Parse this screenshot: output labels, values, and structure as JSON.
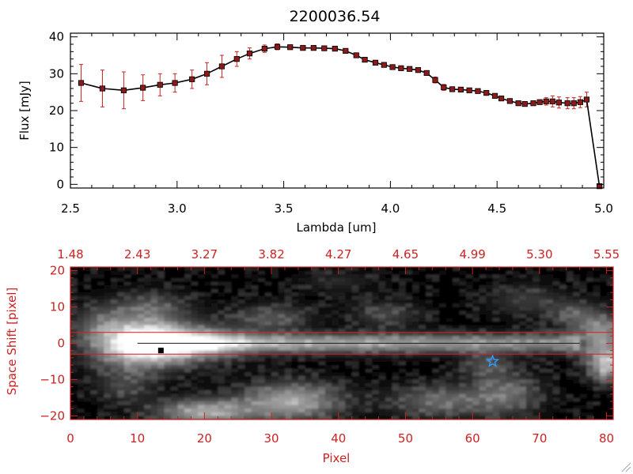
{
  "chart_data": [
    {
      "type": "line",
      "title": "2200036.54",
      "xlabel": "Lambda [um]",
      "ylabel": "Flux [mJy]",
      "xlim": [
        2.5,
        5.0
      ],
      "ylim": [
        -1,
        41
      ],
      "x_ticks": [
        {
          "v": 2.5,
          "label": "2.5"
        },
        {
          "v": 3.0,
          "label": "3.0"
        },
        {
          "v": 3.5,
          "label": "3.5"
        },
        {
          "v": 4.0,
          "label": "4.0"
        },
        {
          "v": 4.5,
          "label": "4.5"
        },
        {
          "v": 5.0,
          "label": "5.0"
        }
      ],
      "y_ticks": [
        {
          "v": 0,
          "label": "0"
        },
        {
          "v": 10,
          "label": "10"
        },
        {
          "v": 20,
          "label": "20"
        },
        {
          "v": 30,
          "label": "30"
        },
        {
          "v": 40,
          "label": "40"
        }
      ],
      "line_color": "#000000",
      "marker_color": "#8b1a1a",
      "error_color": "#cc2222",
      "x": [
        2.55,
        2.65,
        2.75,
        2.84,
        2.92,
        2.99,
        3.07,
        3.14,
        3.21,
        3.28,
        3.34,
        3.41,
        3.47,
        3.53,
        3.59,
        3.64,
        3.69,
        3.74,
        3.79,
        3.84,
        3.88,
        3.93,
        3.97,
        4.01,
        4.05,
        4.09,
        4.13,
        4.17,
        4.21,
        4.25,
        4.29,
        4.33,
        4.37,
        4.41,
        4.45,
        4.49,
        4.52,
        4.56,
        4.6,
        4.63,
        4.67,
        4.7,
        4.73,
        4.76,
        4.79,
        4.83,
        4.86,
        4.89,
        4.92,
        4.98
      ],
      "y": [
        27.5,
        26.0,
        25.5,
        26.2,
        27.0,
        27.5,
        28.5,
        30.0,
        32.0,
        34.0,
        35.5,
        36.8,
        37.3,
        37.2,
        37.0,
        37.0,
        36.9,
        36.8,
        36.2,
        35.0,
        33.8,
        33.0,
        32.4,
        31.8,
        31.5,
        31.3,
        31.0,
        30.2,
        28.3,
        26.3,
        25.8,
        25.7,
        25.5,
        25.3,
        24.8,
        24.0,
        23.3,
        22.6,
        22.0,
        21.8,
        22.0,
        22.3,
        22.5,
        22.5,
        22.2,
        22.0,
        22.0,
        22.3,
        23.0,
        -0.5
      ],
      "yerr": [
        5.0,
        5.0,
        5.0,
        3.5,
        3.0,
        2.5,
        2.5,
        3.0,
        3.0,
        2.0,
        1.5,
        1.0,
        0.8,
        0.5,
        0.5,
        0.5,
        0.5,
        0.5,
        0.5,
        0.5,
        0.5,
        0.5,
        0.5,
        0.5,
        0.5,
        0.5,
        0.5,
        0.5,
        0.8,
        0.8,
        0.5,
        0.5,
        0.5,
        0.5,
        0.5,
        0.5,
        0.5,
        0.5,
        0.5,
        0.5,
        0.5,
        0.5,
        1.0,
        1.5,
        1.5,
        1.5,
        1.5,
        1.5,
        2.0,
        0.5
      ]
    },
    {
      "type": "heatmap",
      "xlabel": "Pixel",
      "ylabel": "Space Shift [pixel]",
      "xlim": [
        0,
        81
      ],
      "ylim": [
        -21,
        21
      ],
      "x_ticks": [
        {
          "v": 0,
          "label": "0"
        },
        {
          "v": 10,
          "label": "10"
        },
        {
          "v": 20,
          "label": "20"
        },
        {
          "v": 30,
          "label": "30"
        },
        {
          "v": 40,
          "label": "40"
        },
        {
          "v": 50,
          "label": "50"
        },
        {
          "v": 60,
          "label": "60"
        },
        {
          "v": 70,
          "label": "70"
        },
        {
          "v": 80,
          "label": "80"
        }
      ],
      "y_ticks": [
        {
          "v": -20,
          "label": "−20"
        },
        {
          "v": -10,
          "label": "−10"
        },
        {
          "v": 0,
          "label": "0"
        },
        {
          "v": 10,
          "label": "10"
        },
        {
          "v": 20,
          "label": "20"
        }
      ],
      "top_axis_label_values": [
        {
          "v": 0,
          "label": "1.48"
        },
        {
          "v": 10,
          "label": "2.43"
        },
        {
          "v": 20,
          "label": "3.27"
        },
        {
          "v": 30,
          "label": "3.82"
        },
        {
          "v": 40,
          "label": "4.27"
        },
        {
          "v": 50,
          "label": "4.65"
        },
        {
          "v": 60,
          "label": "4.99"
        },
        {
          "v": 70,
          "label": "5.30"
        },
        {
          "v": 80,
          "label": "5.55"
        }
      ],
      "axis_color": "#cc2222",
      "extraction_lines_y": [
        3,
        -3
      ],
      "center_line_y": 0,
      "star_marker": {
        "x": 63,
        "y": -5,
        "color": "#3399ff"
      },
      "black_marker": {
        "x": 13.5,
        "y": -2
      },
      "blobs": [
        {
          "x": 10,
          "y": 0,
          "sx": 4.5,
          "sy": 4.5,
          "a": 0.95
        },
        {
          "x": 18,
          "y": 0,
          "sx": 5,
          "sy": 3.5,
          "a": 0.55
        },
        {
          "x": 20,
          "y": -19,
          "sx": 5,
          "sy": 2.5,
          "a": 0.6
        },
        {
          "x": 33,
          "y": -16,
          "sx": 5,
          "sy": 3.5,
          "a": 0.6
        },
        {
          "x": 12,
          "y": 10,
          "sx": 4,
          "sy": 3,
          "a": 0.25
        },
        {
          "x": 30,
          "y": 7,
          "sx": 4,
          "sy": 2.5,
          "a": 0.28
        },
        {
          "x": 8,
          "y": -12,
          "sx": 3,
          "sy": 3,
          "a": 0.2
        },
        {
          "x": 47,
          "y": 8,
          "sx": 3.5,
          "sy": 2.5,
          "a": 0.22
        },
        {
          "x": 55,
          "y": -16,
          "sx": 5,
          "sy": 3,
          "a": 0.35
        },
        {
          "x": 65,
          "y": -14,
          "sx": 3.5,
          "sy": 4,
          "a": 0.35
        },
        {
          "x": 62,
          "y": -6,
          "sx": 2.5,
          "sy": 2.5,
          "a": 0.25
        },
        {
          "x": 79,
          "y": 2,
          "sx": 2.5,
          "sy": 4,
          "a": 0.55
        },
        {
          "x": 80,
          "y": -6,
          "sx": 1.8,
          "sy": 3,
          "a": 0.65
        },
        {
          "x": 75,
          "y": 8,
          "sx": 2.5,
          "sy": 2.5,
          "a": 0.25
        },
        {
          "x": 40,
          "y": 17,
          "sx": 4,
          "sy": 2,
          "a": 0.12
        },
        {
          "x": 68,
          "y": 12,
          "sx": 4,
          "sy": 3,
          "a": 0.18
        },
        {
          "x": 4,
          "y": 5,
          "sx": 3,
          "sy": 4,
          "a": 0.2
        }
      ],
      "trace": {
        "x_start": 8,
        "x_end": 76,
        "y": 0,
        "sy": 1.8,
        "a_start": 0.7,
        "a_end": 0.45
      }
    }
  ]
}
